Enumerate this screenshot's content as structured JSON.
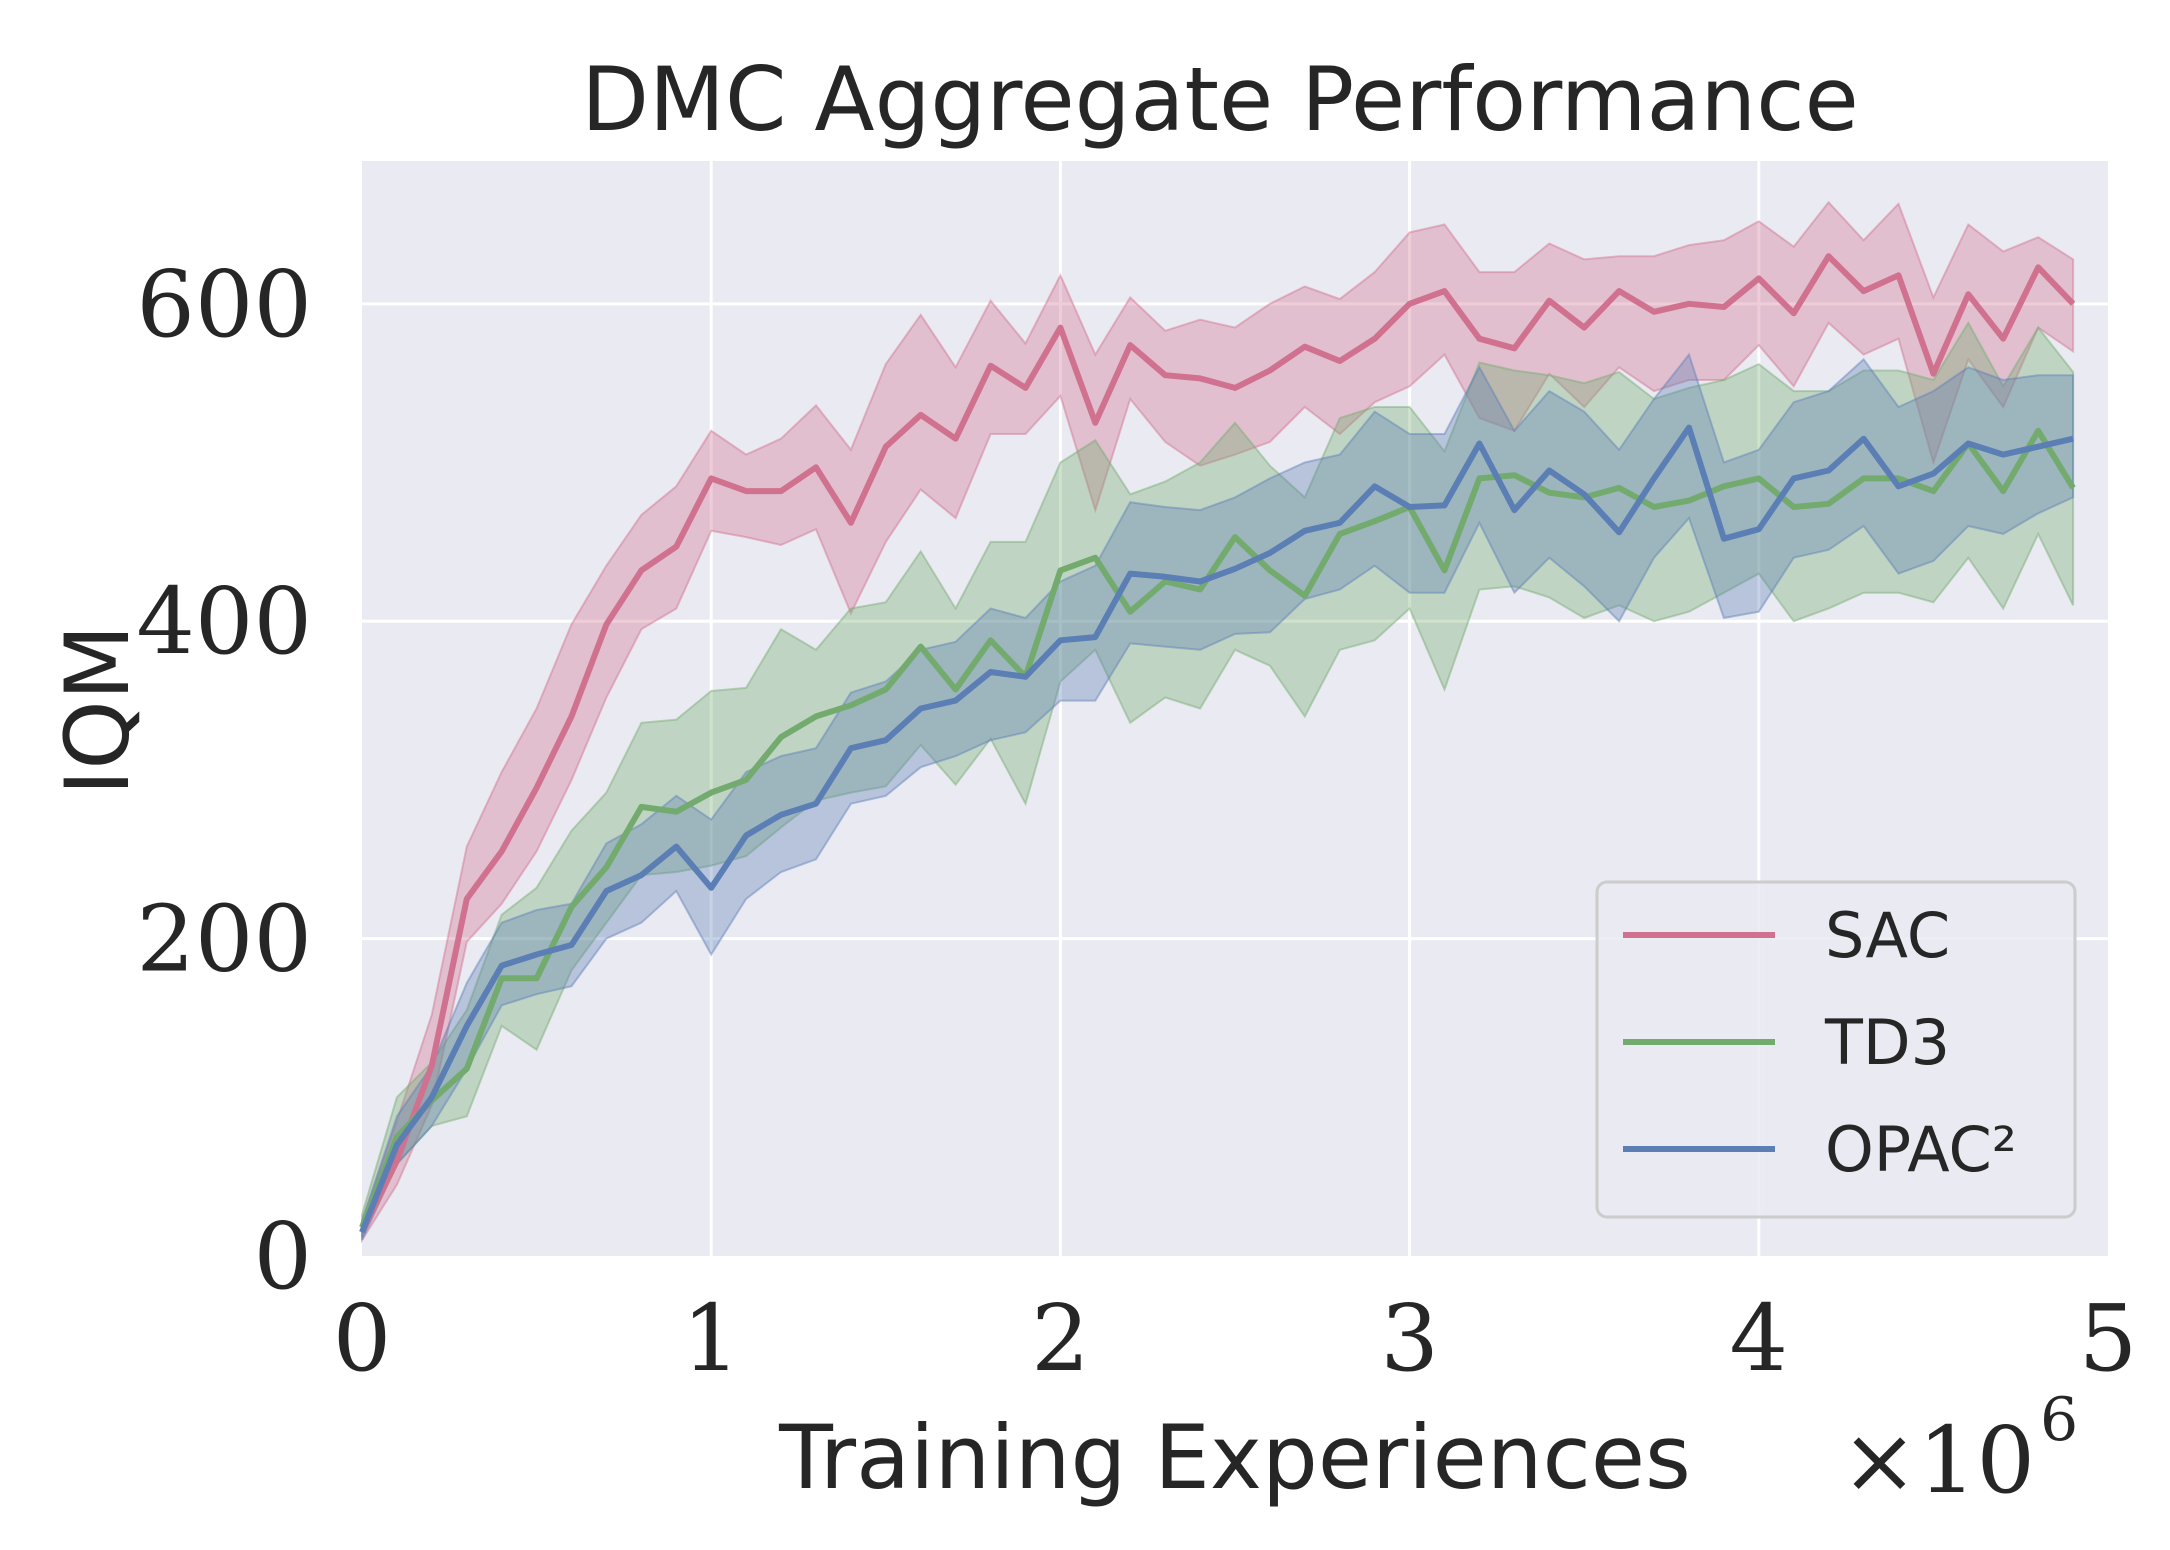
{
  "chart_data": {
    "type": "line",
    "title": "DMC Aggregate Performance",
    "xlabel": "Training Experiences",
    "ylabel": "IQM",
    "x_multiplier": "×10",
    "x_multiplier_exp": "6",
    "xlim": [
      0,
      5
    ],
    "ylim": [
      0,
      690
    ],
    "xticks": [
      0,
      1,
      2,
      3,
      4,
      5
    ],
    "xtick_labels": [
      "0",
      "1",
      "2",
      "3",
      "4",
      "5"
    ],
    "yticks": [
      0,
      200,
      400,
      600
    ],
    "ytick_labels": [
      "0",
      "200",
      "400",
      "600"
    ],
    "grid": true,
    "legend_position": "lower-right",
    "x": [
      0,
      0.1,
      0.2,
      0.3,
      0.4,
      0.5,
      0.6,
      0.7,
      0.8,
      0.9,
      1.0,
      1.1,
      1.2,
      1.3,
      1.4,
      1.5,
      1.6,
      1.7,
      1.8,
      1.9,
      2.0,
      2.1,
      2.2,
      2.3,
      2.4,
      2.5,
      2.6,
      2.7,
      2.8,
      2.9,
      3.0,
      3.1,
      3.2,
      3.3,
      3.4,
      3.5,
      3.6,
      3.7,
      3.8,
      3.9,
      4.0,
      4.1,
      4.2,
      4.3,
      4.4,
      4.5,
      4.6,
      4.7,
      4.8,
      4.9
    ],
    "series": [
      {
        "name": "SAC",
        "color": "#d0718f",
        "values": [
          15,
          60,
          120,
          225,
          255,
          295,
          340,
          398,
          432,
          447,
          490,
          482,
          482,
          497,
          462,
          510,
          530,
          515,
          561,
          547,
          585,
          525,
          574,
          555,
          553,
          547,
          558,
          573,
          564,
          578,
          600,
          608,
          578,
          572,
          602,
          585,
          608,
          595,
          600,
          598,
          616,
          594,
          630,
          608,
          618,
          556,
          606,
          578,
          623,
          600
        ],
        "lower": [
          10,
          45,
          95,
          198,
          222,
          255,
          300,
          352,
          395,
          408,
          457,
          453,
          448,
          458,
          405,
          450,
          483,
          465,
          518,
          518,
          542,
          470,
          540,
          513,
          498,
          505,
          513,
          535,
          518,
          538,
          548,
          568,
          528,
          520,
          556,
          535,
          560,
          545,
          552,
          552,
          574,
          548,
          588,
          568,
          578,
          500,
          565,
          535,
          585,
          570
        ],
        "upper": [
          22,
          85,
          152,
          258,
          305,
          345,
          398,
          435,
          467,
          485,
          520,
          505,
          515,
          536,
          508,
          562,
          593,
          560,
          602,
          575,
          618,
          568,
          604,
          583,
          590,
          585,
          600,
          611,
          603,
          620,
          645,
          650,
          620,
          620,
          638,
          628,
          630,
          630,
          637,
          640,
          652,
          636,
          664,
          640,
          663,
          604,
          650,
          633,
          642,
          628
        ]
      },
      {
        "name": "TD3",
        "color": "#73ab6e",
        "values": [
          18,
          75,
          98,
          118,
          175,
          175,
          220,
          245,
          283,
          280,
          292,
          300,
          327,
          340,
          347,
          357,
          384,
          357,
          388,
          365,
          432,
          440,
          406,
          425,
          420,
          453,
          432,
          416,
          455,
          463,
          472,
          432,
          490,
          492,
          481,
          478,
          484,
          472,
          476,
          485,
          490,
          472,
          474,
          490,
          490,
          482,
          512,
          482,
          520,
          484
        ],
        "lower": [
          12,
          58,
          82,
          88,
          145,
          130,
          180,
          210,
          240,
          242,
          246,
          252,
          270,
          287,
          292,
          296,
          322,
          297,
          326,
          285,
          362,
          382,
          336,
          352,
          345,
          382,
          372,
          340,
          382,
          388,
          408,
          357,
          420,
          422,
          415,
          402,
          410,
          400,
          406,
          418,
          430,
          400,
          408,
          418,
          418,
          412,
          440,
          408,
          455,
          410
        ],
        "upper": [
          26,
          100,
          122,
          155,
          215,
          232,
          268,
          292,
          336,
          338,
          356,
          358,
          395,
          382,
          408,
          412,
          444,
          408,
          450,
          450,
          500,
          514,
          480,
          488,
          500,
          525,
          498,
          478,
          528,
          535,
          535,
          507,
          563,
          558,
          555,
          550,
          557,
          540,
          547,
          552,
          562,
          545,
          545,
          558,
          558,
          552,
          588,
          548,
          585,
          557
        ]
      },
      {
        "name": "OPAC²",
        "color": "#5b7fb5",
        "values": [
          15,
          70,
          100,
          145,
          183,
          190,
          196,
          230,
          240,
          258,
          232,
          265,
          278,
          285,
          320,
          325,
          345,
          350,
          368,
          365,
          388,
          390,
          430,
          428,
          425,
          433,
          443,
          457,
          462,
          485,
          472,
          473,
          512,
          470,
          495,
          480,
          456,
          490,
          522,
          452,
          458,
          490,
          495,
          515,
          485,
          493,
          512,
          505,
          510,
          515
        ],
        "lower": [
          10,
          58,
          82,
          118,
          158,
          165,
          170,
          200,
          210,
          230,
          190,
          225,
          242,
          250,
          285,
          290,
          308,
          315,
          325,
          330,
          350,
          350,
          386,
          384,
          382,
          392,
          393,
          414,
          420,
          435,
          418,
          418,
          462,
          418,
          440,
          422,
          400,
          440,
          465,
          402,
          406,
          440,
          445,
          460,
          430,
          438,
          460,
          455,
          468,
          478
        ],
        "upper": [
          22,
          88,
          120,
          172,
          210,
          218,
          222,
          260,
          272,
          290,
          275,
          305,
          315,
          320,
          355,
          362,
          382,
          387,
          408,
          402,
          425,
          435,
          475,
          472,
          470,
          478,
          490,
          500,
          505,
          532,
          518,
          518,
          560,
          520,
          545,
          532,
          508,
          540,
          568,
          500,
          508,
          538,
          545,
          565,
          535,
          545,
          560,
          552,
          555,
          555
        ]
      }
    ]
  }
}
